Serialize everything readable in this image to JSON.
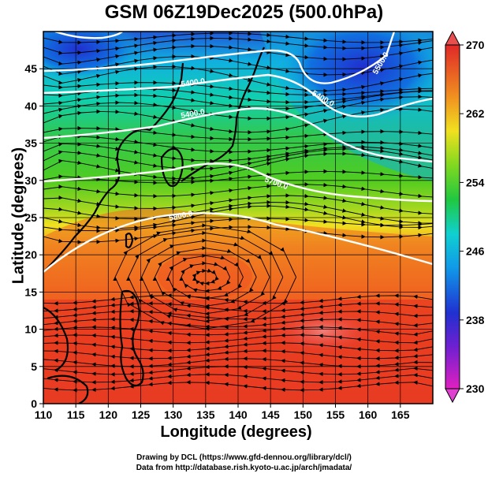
{
  "title": "GSM 06Z19Dec2025 (500.0hPa)",
  "xaxis": {
    "label": "Longitude (degrees)",
    "ticks": [
      "110",
      "115",
      "120",
      "125",
      "130",
      "135",
      "140",
      "145",
      "150",
      "155",
      "160",
      "165"
    ]
  },
  "yaxis": {
    "label": "Latitude (degrees)",
    "ticks": [
      "0",
      "5",
      "10",
      "15",
      "20",
      "25",
      "30",
      "35",
      "40",
      "45"
    ]
  },
  "colorbar": {
    "ticks": [
      "230",
      "238",
      "246",
      "254",
      "262",
      "270"
    ],
    "min": 230,
    "max": 270
  },
  "contour_labels": [
    "5400.0",
    "5400.0",
    "5400.0",
    "5700.0",
    "5800.0",
    "5500.0"
  ],
  "credits": {
    "drawing": "Drawing by DCL (https://www.gfd-dennou.org/library/dcl/)",
    "data": "Data from http://database.rish.kyoto-u.ac.jp/arch/jmadata/"
  },
  "colors": {
    "cold": "#2030d0",
    "cyan": "#10c8e0",
    "green": "#30c830",
    "yellow": "#f0e020",
    "orange": "#f08020",
    "red": "#e82828",
    "contour": "#ffffff",
    "coast": "#000000"
  },
  "chart_data": {
    "type": "heatmap",
    "title": "GSM 06Z19Dec2025 (500.0hPa)",
    "xlabel": "Longitude (degrees)",
    "ylabel": "Latitude (degrees)",
    "xlim": [
      110,
      170
    ],
    "ylim": [
      0,
      50
    ],
    "colorbar_range": [
      230,
      270
    ],
    "colorbar_ticks": [
      230,
      238,
      246,
      254,
      262,
      270
    ],
    "field": "temperature (K) with geopotential height contours and streamlines",
    "height_contours_m": [
      5400,
      5500,
      5700,
      5800
    ]
  }
}
